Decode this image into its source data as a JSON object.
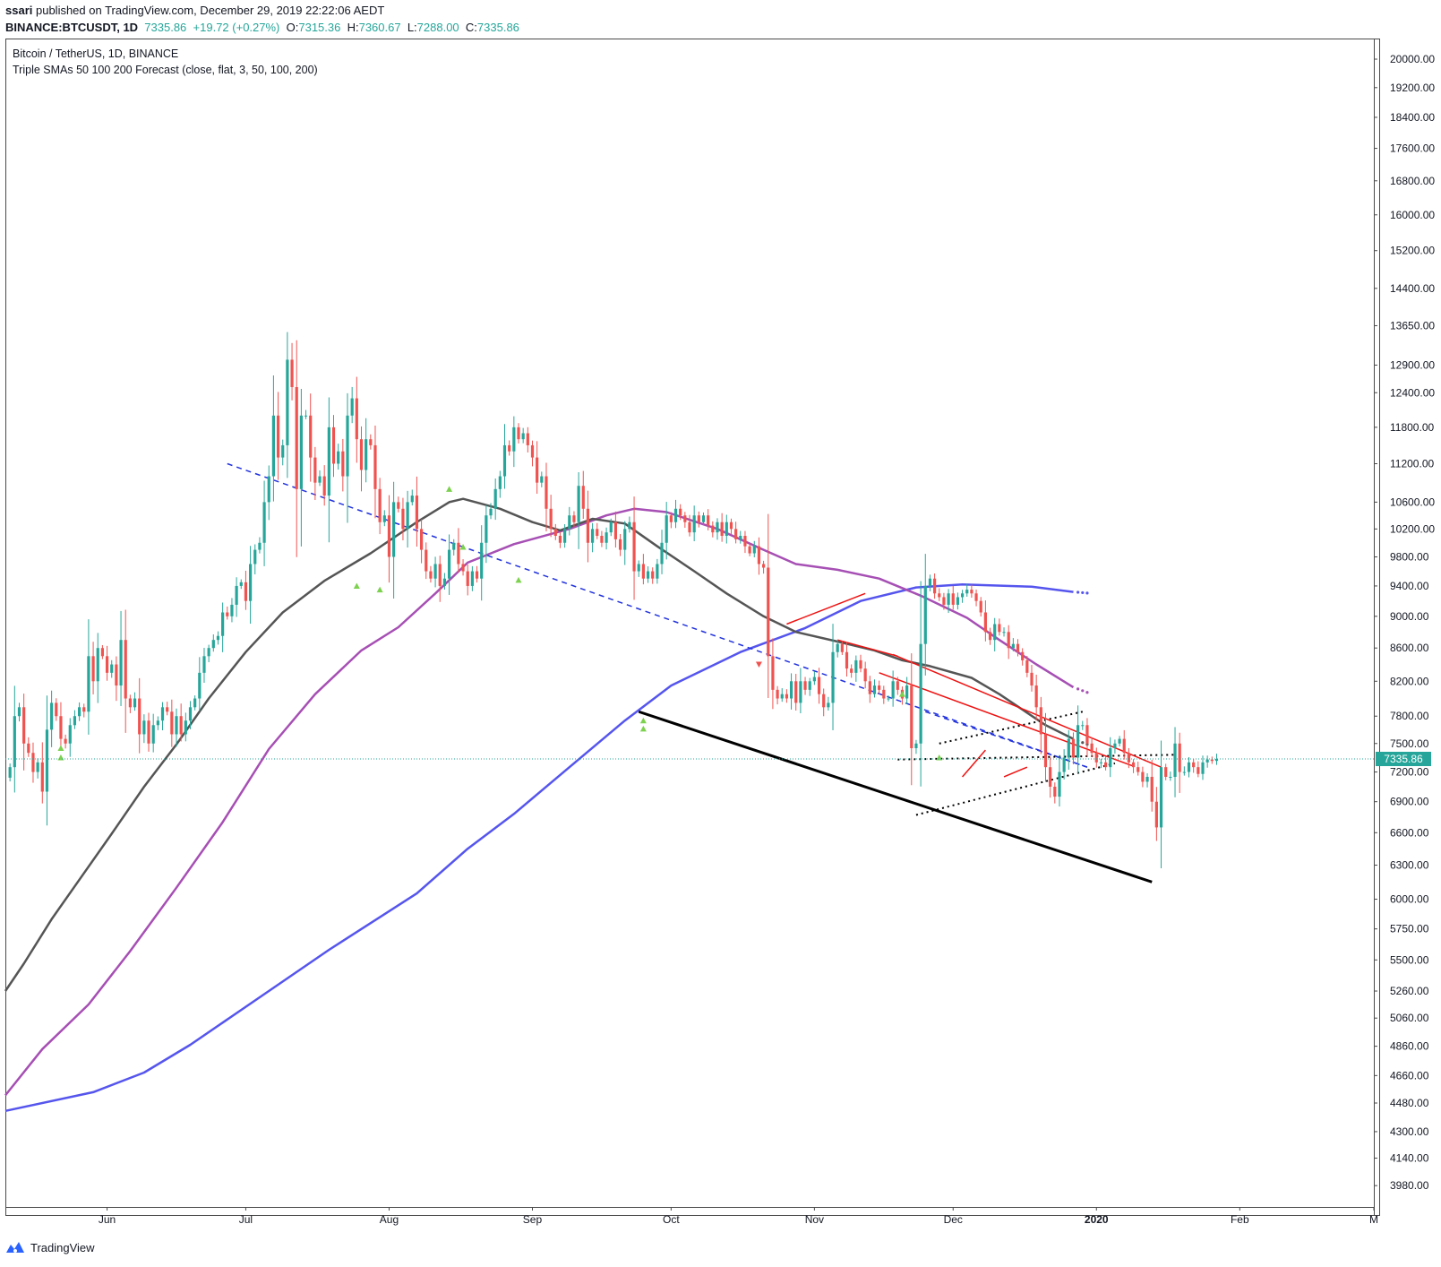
{
  "header": {
    "publisher": "ssari",
    "published_text": " published on TradingView.com, December 29, 2019 22:22:06 AEDT",
    "symbol": "BINANCE:BTCUSDT, 1D",
    "last": "7335.86",
    "change": "+19.72 (+0.27%)",
    "o_label": "O:",
    "o_value": "7315.36",
    "h_label": "H:",
    "h_value": "7360.67",
    "l_label": "L:",
    "l_value": "7288.00",
    "c_label": "C:",
    "c_value": "7335.86"
  },
  "legend": {
    "title": "Bitcoin / TetherUS, 1D, BINANCE",
    "indicator": "Triple SMAs 50 100 200 Forecast (close, flat, 3, 50, 100, 200)"
  },
  "footer": {
    "brand": "TradingView",
    "icon": "tradingview-logo-icon"
  },
  "colors": {
    "up": "#26a69a",
    "down": "#ef5350",
    "sma50": "#555555",
    "sma100": "#a64fb4",
    "sma200": "#5555ee",
    "trend_blue": "#2233dd",
    "trend_red": "#ee1111",
    "trend_black": "#000000",
    "price_line": "#26a69a",
    "up_marker": "#7cd14e",
    "down_marker": "#ef5350"
  },
  "chart_data": {
    "type": "candlestick",
    "scale": "log",
    "ylim": [
      3860,
      20600
    ],
    "xlim": [
      "2019-05-10",
      "2020-03-01"
    ],
    "price_axis_ticks": [
      "20000.00",
      "19200.00",
      "18400.00",
      "17600.00",
      "16800.00",
      "16000.00",
      "15200.00",
      "14400.00",
      "13650.00",
      "12900.00",
      "12400.00",
      "11800.00",
      "11200.00",
      "10600.00",
      "10200.00",
      "9800.00",
      "9400.00",
      "9000.00",
      "8600.00",
      "8200.00",
      "7800.00",
      "7500.00",
      "7200.00",
      "6900.00",
      "6600.00",
      "6300.00",
      "6000.00",
      "5750.00",
      "5500.00",
      "5260.00",
      "5060.00",
      "4860.00",
      "4660.00",
      "4480.00",
      "4300.00",
      "4140.00",
      "3980.00"
    ],
    "time_axis_labels": [
      {
        "label": "Jun",
        "date": "2019-06-01"
      },
      {
        "label": "Jul",
        "date": "2019-07-01"
      },
      {
        "label": "Aug",
        "date": "2019-08-01"
      },
      {
        "label": "Sep",
        "date": "2019-09-01"
      },
      {
        "label": "Oct",
        "date": "2019-10-01"
      },
      {
        "label": "Nov",
        "date": "2019-11-01"
      },
      {
        "label": "Dec",
        "date": "2019-12-01"
      },
      {
        "label": "2020",
        "date": "2020-01-01"
      },
      {
        "label": "Feb",
        "date": "2020-02-01"
      },
      {
        "label": "M",
        "date": "2020-03-01"
      }
    ],
    "last_price": 7335.86,
    "last_price_label": "7335.86",
    "candles_start": "2019-05-11",
    "closes": [
      7250,
      7800,
      7900,
      7500,
      7400,
      7200,
      7300,
      7000,
      7650,
      7950,
      7800,
      7550,
      7500,
      7700,
      7800,
      7900,
      7850,
      8500,
      8200,
      8600,
      8500,
      8300,
      8400,
      8150,
      8700,
      8000,
      7900,
      8000,
      7600,
      7750,
      7500,
      7700,
      7750,
      7900,
      7850,
      7600,
      7800,
      7600,
      7750,
      7900,
      8000,
      8300,
      8500,
      8600,
      8700,
      8750,
      9050,
      9000,
      9150,
      9400,
      9450,
      9200,
      9700,
      9900,
      10000,
      10600,
      11000,
      12000,
      11300,
      11500,
      13000,
      12500,
      10800,
      12000,
      12000,
      11300,
      10900,
      11000,
      10700,
      11800,
      11200,
      11400,
      11000,
      12000,
      12300,
      11600,
      11100,
      11600,
      11500,
      10800,
      10300,
      10400,
      9800,
      10600,
      10500,
      10200,
      10600,
      10700,
      10200,
      9900,
      9600,
      9500,
      9700,
      9400,
      9500,
      9900,
      10000,
      9700,
      9600,
      9400,
      9600,
      9500,
      10000,
      10400,
      10500,
      10800,
      11000,
      11500,
      11400,
      11800,
      11600,
      11700,
      11500,
      11300,
      10900,
      11000,
      10500,
      10200,
      10100,
      10000,
      10200,
      10400,
      10300,
      10850,
      10500,
      10000,
      10200,
      10100,
      10000,
      10150,
      10300,
      10050,
      9900,
      10200,
      10300,
      9600,
      9700,
      9500,
      9600,
      9500,
      9700,
      10000,
      10400,
      10300,
      10500,
      10400,
      10300,
      10150,
      10400,
      10300,
      10400,
      10250,
      10150,
      10300,
      10100,
      10300,
      10200,
      10050,
      10100,
      9950,
      9850,
      9950,
      9700,
      9650,
      8500,
      8100,
      8000,
      8050,
      8000,
      8200,
      7950,
      8200,
      8100,
      8200,
      8250,
      8050,
      7900,
      7950,
      8550,
      8650,
      8550,
      8350,
      8300,
      8450,
      8350,
      8200,
      8050,
      8150,
      8100,
      8000,
      8000,
      8200,
      8100,
      8000,
      8150,
      7450,
      7500,
      8650,
      9400,
      9500,
      9300,
      9250,
      9150,
      9300,
      9150,
      9250,
      9300,
      9350,
      9300,
      9200,
      9050,
      8800,
      8700,
      8900,
      8800,
      8800,
      8600,
      8650,
      8550,
      8450,
      8300,
      8150,
      7900,
      7600,
      7250,
      7050,
      6950,
      7200,
      7350,
      7550,
      7350,
      7700,
      7700,
      7500,
      7400,
      7300,
      7300,
      7250,
      7450,
      7500,
      7550,
      7400,
      7300,
      7250,
      7200,
      7100,
      7150,
      6900,
      6650,
      7250,
      7150,
      7150,
      7500,
      7200,
      7200,
      7300,
      7250,
      7180,
      7300,
      7330,
      7315,
      7336
    ],
    "sma50": [
      [
        5260,
        "2019-05-10"
      ],
      [
        5470,
        "2019-05-14"
      ],
      [
        5830,
        "2019-05-20"
      ],
      [
        6170,
        "2019-05-26"
      ],
      [
        6590,
        "2019-06-02"
      ],
      [
        7050,
        "2019-06-09"
      ],
      [
        7490,
        "2019-06-16"
      ],
      [
        8000,
        "2019-06-23"
      ],
      [
        8550,
        "2019-07-01"
      ],
      [
        9050,
        "2019-07-09"
      ],
      [
        9470,
        "2019-07-18"
      ],
      [
        9850,
        "2019-07-28"
      ],
      [
        10300,
        "2019-08-07"
      ],
      [
        10600,
        "2019-08-14"
      ],
      [
        10650,
        "2019-08-17"
      ],
      [
        10500,
        "2019-08-25"
      ],
      [
        10300,
        "2019-09-01"
      ],
      [
        10180,
        "2019-09-07"
      ],
      [
        10350,
        "2019-09-14"
      ],
      [
        10280,
        "2019-09-21"
      ],
      [
        9950,
        "2019-09-28"
      ],
      [
        9600,
        "2019-10-06"
      ],
      [
        9300,
        "2019-10-13"
      ],
      [
        9000,
        "2019-10-21"
      ],
      [
        8800,
        "2019-10-28"
      ],
      [
        8680,
        "2019-11-06"
      ],
      [
        8570,
        "2019-11-14"
      ],
      [
        8450,
        "2019-11-20"
      ],
      [
        8380,
        "2019-11-26"
      ],
      [
        8240,
        "2019-12-05"
      ],
      [
        8050,
        "2019-12-11"
      ],
      [
        7700,
        "2019-12-21"
      ],
      [
        7600,
        "2019-12-25"
      ],
      [
        7550,
        "2019-12-27"
      ]
    ],
    "sma50_forecast": [
      7530,
      7510,
      7490
    ],
    "sma100": [
      [
        4530,
        "2019-05-10"
      ],
      [
        4840,
        "2019-05-18"
      ],
      [
        5160,
        "2019-05-28"
      ],
      [
        5570,
        "2019-06-06"
      ],
      [
        6100,
        "2019-06-16"
      ],
      [
        6700,
        "2019-06-26"
      ],
      [
        7440,
        "2019-07-06"
      ],
      [
        8050,
        "2019-07-16"
      ],
      [
        8570,
        "2019-07-26"
      ],
      [
        8860,
        "2019-08-03"
      ],
      [
        9300,
        "2019-08-11"
      ],
      [
        9720,
        "2019-08-18"
      ],
      [
        9980,
        "2019-08-28"
      ],
      [
        10200,
        "2019-09-09"
      ],
      [
        10400,
        "2019-09-17"
      ],
      [
        10500,
        "2019-09-23"
      ],
      [
        10450,
        "2019-09-30"
      ],
      [
        10200,
        "2019-10-11"
      ],
      [
        9900,
        "2019-10-21"
      ],
      [
        9700,
        "2019-10-28"
      ],
      [
        9620,
        "2019-11-06"
      ],
      [
        9500,
        "2019-11-15"
      ],
      [
        9270,
        "2019-11-24"
      ],
      [
        8980,
        "2019-12-04"
      ],
      [
        8700,
        "2019-12-11"
      ],
      [
        8400,
        "2019-12-19"
      ],
      [
        8130,
        "2019-12-27"
      ]
    ],
    "sma100_forecast": [
      8110,
      8090,
      8070
    ],
    "sma200": [
      [
        4430,
        "2019-05-10"
      ],
      [
        4550,
        "2019-05-29"
      ],
      [
        4680,
        "2019-06-09"
      ],
      [
        4870,
        "2019-06-19"
      ],
      [
        5260,
        "2019-07-06"
      ],
      [
        5580,
        "2019-07-19"
      ],
      [
        6050,
        "2019-08-07"
      ],
      [
        6450,
        "2019-08-18"
      ],
      [
        6780,
        "2019-08-28"
      ],
      [
        7250,
        "2019-09-09"
      ],
      [
        7750,
        "2019-09-21"
      ],
      [
        8150,
        "2019-10-01"
      ],
      [
        8550,
        "2019-10-16"
      ],
      [
        8850,
        "2019-10-30"
      ],
      [
        9200,
        "2019-11-11"
      ],
      [
        9380,
        "2019-11-23"
      ],
      [
        9420,
        "2019-12-03"
      ],
      [
        9390,
        "2019-12-18"
      ],
      [
        9320,
        "2019-12-27"
      ]
    ],
    "sma200_forecast": [
      9315,
      9310,
      9305
    ],
    "trendlines": [
      {
        "color": "trend_blue",
        "dash": "dashed",
        "from": [
          "2019-06-27",
          11200
        ],
        "to": [
          "2019-12-30",
          7250
        ]
      },
      {
        "color": "trend_blue",
        "dash": "dashed",
        "from": [
          "2019-11-25",
          7850
        ],
        "to": [
          "2019-12-30",
          7250
        ]
      },
      {
        "color": "trend_black",
        "dash": "solid",
        "width": 3,
        "from": [
          "2019-09-24",
          7850
        ],
        "to": [
          "2020-01-13",
          6150
        ]
      },
      {
        "color": "trend_black",
        "dash": "dotted",
        "from": [
          "2019-11-19",
          7330
        ],
        "to": [
          "2020-01-18",
          7380
        ]
      },
      {
        "color": "trend_black",
        "dash": "dotted",
        "from": [
          "2019-11-23",
          6770
        ],
        "to": [
          "2020-01-05",
          7290
        ]
      },
      {
        "color": "trend_black",
        "dash": "dotted",
        "from": [
          "2019-11-28",
          7500
        ],
        "to": [
          "2019-12-29",
          7850
        ]
      },
      {
        "color": "trend_red",
        "dash": "solid",
        "from": [
          "2019-10-26",
          8900
        ],
        "to": [
          "2019-11-12",
          9300
        ]
      },
      {
        "color": "trend_red",
        "dash": "solid",
        "from": [
          "2019-11-06",
          8700
        ],
        "to": [
          "2019-11-19",
          8500
        ]
      },
      {
        "color": "trend_red",
        "dash": "solid",
        "from": [
          "2019-11-18",
          8520
        ],
        "to": [
          "2020-01-15",
          7250
        ]
      },
      {
        "color": "trend_red",
        "dash": "solid",
        "from": [
          "2019-11-15",
          8300
        ],
        "to": [
          "2020-01-09",
          7260
        ]
      },
      {
        "color": "trend_red",
        "dash": "solid",
        "from": [
          "2019-12-03",
          7150
        ],
        "to": [
          "2019-12-08",
          7430
        ]
      },
      {
        "color": "trend_red",
        "dash": "solid",
        "from": [
          "2019-12-12",
          7150
        ],
        "to": [
          "2019-12-17",
          7250
        ]
      }
    ],
    "up_markers": [
      [
        "2019-05-22",
        7450
      ],
      [
        "2019-05-22",
        7350
      ],
      [
        "2019-07-25",
        9400
      ],
      [
        "2019-07-30",
        9350
      ],
      [
        "2019-08-14",
        10800
      ],
      [
        "2019-08-17",
        9940
      ],
      [
        "2019-08-29",
        9480
      ],
      [
        "2019-09-25",
        7750
      ],
      [
        "2019-09-25",
        7660
      ],
      [
        "2019-11-20",
        8050
      ],
      [
        "2019-11-28",
        7350
      ]
    ],
    "down_markers": [
      [
        "2019-10-20",
        8400
      ]
    ]
  }
}
